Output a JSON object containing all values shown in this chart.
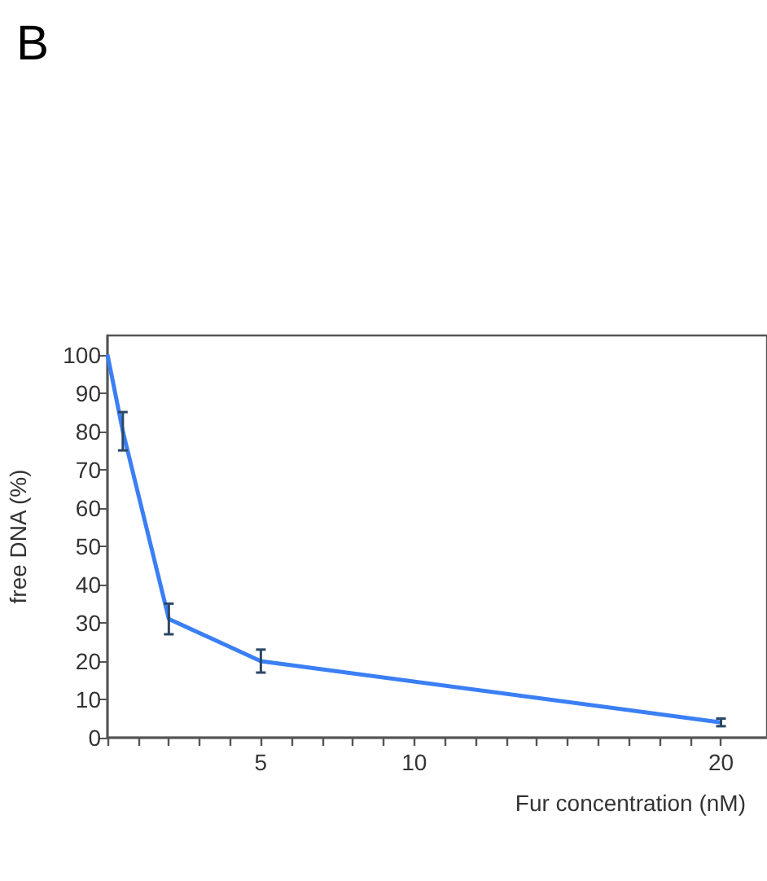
{
  "chart_data": {
    "type": "line",
    "xlabel": "Fur concentration (nM)",
    "ylabel": "free DNA (%)",
    "annotations": [
      "B"
    ],
    "x": [
      0,
      0.5,
      2,
      5,
      20
    ],
    "series": [
      {
        "color": "#3b7ff5",
        "values": [
          100,
          80,
          31,
          20,
          4
        ],
        "errors": [
          null,
          5,
          4,
          3,
          1
        ]
      }
    ],
    "xlim": [
      0,
      21.5
    ],
    "xticks": [
      {
        "value": 0,
        "label": null
      },
      {
        "value": 1,
        "label": null
      },
      {
        "value": 2,
        "label": null
      },
      {
        "value": 3,
        "label": null
      },
      {
        "value": 4,
        "label": null
      },
      5,
      {
        "value": 6,
        "label": null
      },
      {
        "value": 7,
        "label": null
      },
      {
        "value": 8,
        "label": null
      },
      {
        "value": 9,
        "label": null
      },
      10,
      {
        "value": 11,
        "label": null
      },
      {
        "value": 12,
        "label": null
      },
      {
        "value": 13,
        "label": null
      },
      {
        "value": 14,
        "label": null
      },
      {
        "value": 15,
        "label": null
      },
      {
        "value": 16,
        "label": null
      },
      {
        "value": 17,
        "label": null
      },
      {
        "value": 18,
        "label": null
      },
      {
        "value": 19,
        "label": null
      },
      20
    ],
    "ylim": [
      0,
      105
    ],
    "yticks": [
      0,
      10,
      20,
      30,
      40,
      50,
      60,
      70,
      80,
      90,
      100
    ],
    "grid": false,
    "marker": "none",
    "line_style": "solid"
  }
}
